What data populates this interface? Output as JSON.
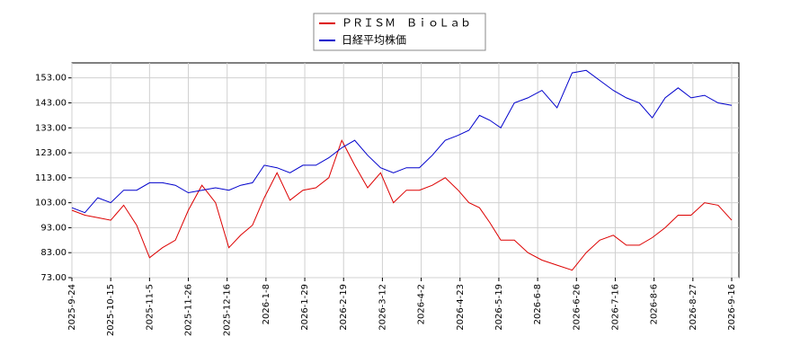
{
  "chart_data": {
    "type": "line",
    "x": [
      "2025-9-24",
      "2025-10-1",
      "2025-10-8",
      "2025-10-15",
      "2025-10-22",
      "2025-10-29",
      "2025-11-5",
      "2025-11-12",
      "2025-11-19",
      "2025-11-26",
      "2025-12-3",
      "2025-12-10",
      "2025-12-17",
      "2025-12-24",
      "2025-12-31",
      "2026-1-7",
      "2026-1-14",
      "2026-1-21",
      "2026-1-28",
      "2026-2-4",
      "2026-2-11",
      "2026-2-18",
      "2026-2-25",
      "2026-3-4",
      "2026-3-11",
      "2026-3-18",
      "2026-3-25",
      "2026-4-1",
      "2026-4-8",
      "2026-4-15",
      "2026-4-22",
      "2026-4-29",
      "2026-5-6",
      "2026-5-13",
      "2026-5-20",
      "2026-5-27",
      "2026-6-3",
      "2026-6-10",
      "2026-6-17",
      "2026-6-24",
      "2026-7-1",
      "2026-7-8",
      "2026-7-15",
      "2026-7-22",
      "2026-7-29",
      "2026-8-5",
      "2026-8-12",
      "2026-8-19",
      "2026-8-26",
      "2026-9-2",
      "2026-9-9",
      "2026-9-16"
    ],
    "series": [
      {
        "name": "ＰＲＩＳＭ　ＢｉｏＬａｂ",
        "color": "#dd0000",
        "values": [
          100,
          98,
          97,
          96,
          102,
          94,
          81,
          85,
          88,
          100,
          110,
          103,
          85,
          90,
          94,
          105,
          115,
          104,
          108,
          109,
          113,
          128,
          118,
          109,
          115,
          103,
          108,
          108,
          110,
          113,
          108,
          103,
          101,
          95,
          88,
          88,
          83,
          80,
          78,
          76,
          83,
          88,
          90,
          86,
          86,
          89,
          93,
          98,
          98,
          103,
          102,
          96
        ]
      },
      {
        "name": "日経平均株価",
        "color": "#0000cc",
        "values": [
          101,
          99,
          105,
          103,
          108,
          108,
          111,
          111,
          110,
          107,
          108,
          109,
          108,
          110,
          111,
          118,
          117,
          115,
          118,
          118,
          121,
          125,
          128,
          122,
          117,
          115,
          117,
          117,
          122,
          128,
          130,
          132,
          138,
          136,
          133,
          143,
          145,
          148,
          141,
          155,
          156,
          152,
          148,
          145,
          143,
          137,
          145,
          149,
          145,
          146,
          143,
          142
        ]
      }
    ],
    "ylim": [
      73,
      159
    ],
    "yticks": [
      {
        "value": 73,
        "label": "73.00"
      },
      {
        "value": 83,
        "label": "83.00"
      },
      {
        "value": 93,
        "label": "93.00"
      },
      {
        "value": 103,
        "label": "103.00"
      },
      {
        "value": 113,
        "label": "113.00"
      },
      {
        "value": 123,
        "label": "123.00"
      },
      {
        "value": 133,
        "label": "133.00"
      },
      {
        "value": 143,
        "label": "143.00"
      },
      {
        "value": 153,
        "label": "153.00"
      }
    ],
    "xticks": [
      "2025-9-24",
      "2025-10-15",
      "2025-11-5",
      "2025-11-26",
      "2025-12-16",
      "2026-1-8",
      "2026-1-29",
      "2026-2-19",
      "2026-3-12",
      "2026-4-2",
      "2026-4-23",
      "2026-5-19",
      "2026-6-8",
      "2026-6-26",
      "2026-7-16",
      "2026-8-6",
      "2026-8-27",
      "2026-9-16"
    ],
    "grid": true,
    "legend": "top"
  }
}
